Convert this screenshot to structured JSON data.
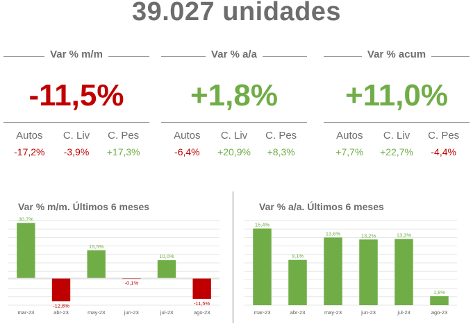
{
  "headline": "39.027  unidades",
  "kpis": [
    {
      "title": "Var % m/m",
      "value": "-11,5%",
      "color": "#c00000",
      "labels": [
        "Autos",
        "C. Liv",
        "C. Pes"
      ],
      "values": [
        {
          "text": "-17,2%",
          "tone": "red"
        },
        {
          "text": "-3,9%",
          "tone": "red"
        },
        {
          "text": "+17,3%",
          "tone": "green"
        }
      ]
    },
    {
      "title": "Var % a/a",
      "value": "+1,8%",
      "color": "#70ad47",
      "labels": [
        "Autos",
        "C. Liv",
        "C. Pes"
      ],
      "values": [
        {
          "text": "-6,4%",
          "tone": "red"
        },
        {
          "text": "+20,9%",
          "tone": "green"
        },
        {
          "text": "+8,3%",
          "tone": "green"
        }
      ]
    },
    {
      "title": "Var % acum",
      "value": "+11,0%",
      "color": "#70ad47",
      "labels": [
        "Autos",
        "C. Liv",
        "C. Pes"
      ],
      "values": [
        {
          "text": "+7,7%",
          "tone": "green"
        },
        {
          "text": "+22,7%",
          "tone": "green"
        },
        {
          "text": "-4,4%",
          "tone": "red"
        }
      ]
    }
  ],
  "colors": {
    "positive": "#70ad47",
    "negative": "#c00000"
  },
  "chart_data": [
    {
      "type": "bar",
      "title": "Var % m/m. Últimos 6 meses",
      "categories": [
        "mar-23",
        "abr-23",
        "may-23",
        "jun-23",
        "jul-23",
        "ago-23"
      ],
      "values": [
        30.7,
        -12.8,
        15.5,
        -0.1,
        10.0,
        -11.5
      ],
      "labels": [
        "30,7%",
        "-12,8%",
        "15,5%",
        "-0,1%",
        "10,0%",
        "-11,5%"
      ],
      "ylim": [
        -15,
        32
      ],
      "grid": true
    },
    {
      "type": "bar",
      "title": "Var % a/a. Últimos 6 meses",
      "categories": [
        "mar-23",
        "abr-23",
        "may-23",
        "jun-23",
        "jul-23",
        "ago-23"
      ],
      "values": [
        15.4,
        9.1,
        13.6,
        13.2,
        13.3,
        1.8
      ],
      "labels": [
        "15,4%",
        "9,1%",
        "13,6%",
        "13,2%",
        "13,3%",
        "1,8%"
      ],
      "ylim": [
        0,
        17
      ],
      "grid": true
    }
  ]
}
